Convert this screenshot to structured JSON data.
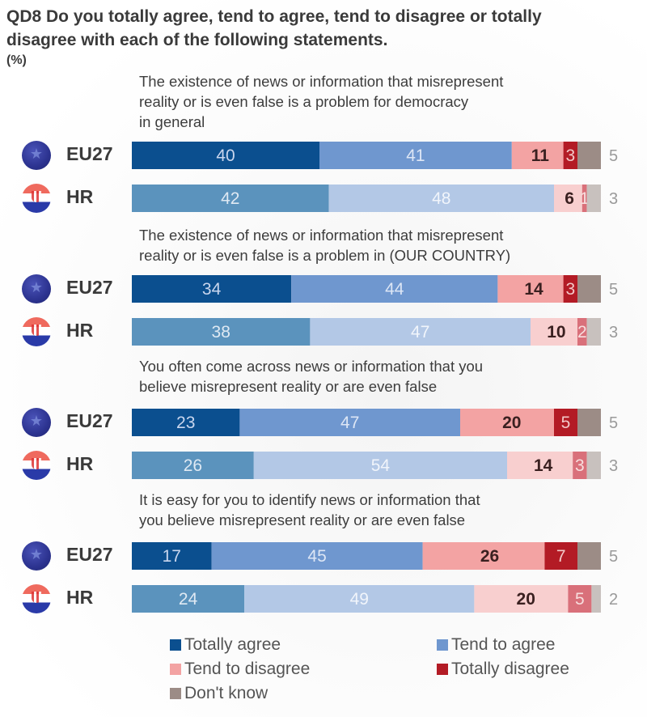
{
  "title": "QD8  Do you totally agree, tend to agree, tend to disagree or totally disagree with each of the following statements.",
  "unit_label": "(%)",
  "colors": {
    "totally_agree": "#0b4f8f",
    "tend_to_agree": "#6f97cf",
    "tend_to_disagree": "#f3a3a3",
    "totally_disagree": "#b31b25",
    "dont_know": "#9c8c86",
    "hr_totally_agree": "#5b93bd",
    "hr_tend_to_agree": "#b3c8e6",
    "hr_tend_to_disagree": "#f8cfcf",
    "hr_totally_disagree": "#d9707a",
    "hr_dont_know": "#c8c1be"
  },
  "rows_meta": {
    "eu": {
      "label": "EU27",
      "flag": "eu-flag-icon"
    },
    "hr": {
      "label": "HR",
      "flag": "croatia-flag-icon"
    }
  },
  "legend": [
    {
      "key": "totally_agree",
      "label": "Totally agree"
    },
    {
      "key": "tend_to_agree",
      "label": "Tend to agree"
    },
    {
      "key": "tend_to_disagree",
      "label": "Tend to disagree"
    },
    {
      "key": "totally_disagree",
      "label": "Totally disagree"
    },
    {
      "key": "dont_know",
      "label": "Don't know"
    }
  ],
  "chart_data": {
    "type": "bar",
    "orientation": "horizontal-stacked-100",
    "title": "QD8  Do you totally agree, tend to agree, tend to disagree or totally disagree with each of the following statements.",
    "unit": "%",
    "xlim": [
      0,
      100
    ],
    "legend_position": "bottom",
    "series_names": [
      "Totally agree",
      "Tend to agree",
      "Tend to disagree",
      "Totally disagree",
      "Don't know"
    ],
    "groups": [
      {
        "statement": "The existence of news or information that misrepresent reality or is even false is a problem for democracy in general",
        "statement_lines": [
          "The existence of news or information that misrepresent",
          "reality or is even false is a problem for democracy",
          "in general"
        ],
        "rows": [
          {
            "name": "EU27",
            "values": [
              40,
              41,
              11,
              3,
              5
            ]
          },
          {
            "name": "HR",
            "values": [
              42,
              48,
              6,
              1,
              3
            ]
          }
        ]
      },
      {
        "statement": "The existence of news or information that misrepresent reality or is even false is a problem in (OUR COUNTRY)",
        "statement_lines": [
          "The existence of news or information that misrepresent",
          "reality or is even false is a problem in (OUR COUNTRY)"
        ],
        "rows": [
          {
            "name": "EU27",
            "values": [
              34,
              44,
              14,
              3,
              5
            ]
          },
          {
            "name": "HR",
            "values": [
              38,
              47,
              10,
              2,
              3
            ]
          }
        ]
      },
      {
        "statement": "You often come across news or information that you believe misrepresent reality or are even false",
        "statement_lines": [
          "You often come across news or information that you",
          "believe misrepresent reality or are even false"
        ],
        "rows": [
          {
            "name": "EU27",
            "values": [
              23,
              47,
              20,
              5,
              5
            ]
          },
          {
            "name": "HR",
            "values": [
              26,
              54,
              14,
              3,
              3
            ]
          }
        ]
      },
      {
        "statement": "It is easy for you to identify news or information that you believe misrepresent reality or are even false",
        "statement_lines": [
          "It is easy for you to identify news or information that",
          "you believe misrepresent reality or are even false"
        ],
        "rows": [
          {
            "name": "EU27",
            "values": [
              17,
              45,
              26,
              7,
              5
            ]
          },
          {
            "name": "HR",
            "values": [
              24,
              49,
              20,
              5,
              2
            ]
          }
        ]
      }
    ]
  }
}
